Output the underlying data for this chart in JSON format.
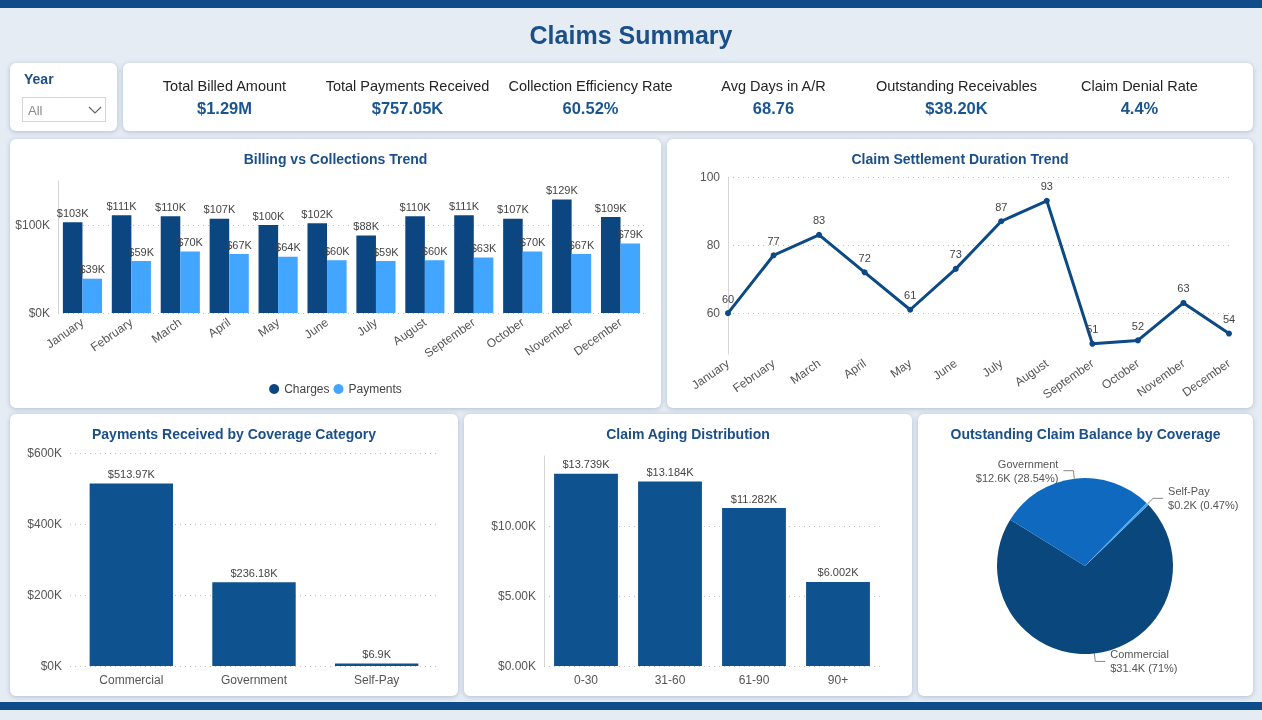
{
  "chart_data": [
    {
      "type": "other",
      "title": "Claims Summary"
    },
    {
      "type": "other",
      "title": "Year",
      "annotations": [
        "All"
      ]
    },
    {
      "type": "other",
      "annotations": [
        "Total Billed Amount",
        "$1.29M",
        "Total Payments Received",
        "$757.05K",
        "Collection Efficiency Rate",
        "60.52%",
        "Avg Days in A/R",
        "68.76",
        "Outstanding Receivables",
        "$38.20K",
        "Claim Denial Rate",
        "4.4%"
      ]
    },
    {
      "type": "bar",
      "title": "Billing vs Collections Trend",
      "categories": [
        "January",
        "February",
        "March",
        "April",
        "May",
        "June",
        "July",
        "August",
        "September",
        "October",
        "November",
        "December"
      ],
      "series": [
        {
          "name": "Charges",
          "color": "#0b4680",
          "values": [
            103000,
            111000,
            110000,
            107000,
            100000,
            102000,
            88000,
            110000,
            111000,
            107000,
            129000,
            109000
          ],
          "value_labels": [
            "$103K",
            "$111K",
            "$110K",
            "$107K",
            "$100K",
            "$102K",
            "$88K",
            "$110K",
            "$111K",
            "$107K",
            "$129K",
            "$109K"
          ]
        },
        {
          "name": "Payments",
          "color": "#42a5ff",
          "values": [
            39000,
            59000,
            70000,
            67000,
            64000,
            60000,
            59000,
            60000,
            63000,
            70000,
            67000,
            79000
          ],
          "value_labels": [
            "$39K",
            "$59K",
            "$70K",
            "$67K",
            "$64K",
            "$60K",
            "$59K",
            "$60K",
            "$63K",
            "$70K",
            "$67K",
            "$79K"
          ]
        }
      ],
      "ylim": [
        0,
        150000
      ],
      "yticks": [
        {
          "value": 0,
          "label": "$0K"
        },
        {
          "value": 100000,
          "label": "$100K"
        }
      ],
      "grid": "y",
      "legend": "bottom"
    },
    {
      "type": "line",
      "title": "Claim Settlement Duration Trend",
      "categories": [
        "January",
        "February",
        "March",
        "April",
        "May",
        "June",
        "July",
        "August",
        "September",
        "October",
        "November",
        "December"
      ],
      "values": [
        60,
        77,
        83,
        72,
        61,
        73,
        87,
        93,
        51,
        52,
        63,
        54
      ],
      "color": "#0c4a85",
      "ylim": [
        48,
        100
      ],
      "yticks": [
        60,
        80,
        100
      ],
      "grid": "y",
      "data_labels": true,
      "marker": "circle",
      "line_style": "solid"
    },
    {
      "type": "bar",
      "title": "Payments Received by Coverage Category",
      "categories": [
        "Commercial",
        "Government",
        "Self-Pay"
      ],
      "values": [
        513970,
        236180,
        6900
      ],
      "value_labels": [
        "$513.97K",
        "$236.18K",
        "$6.9K"
      ],
      "color": "#0f5290",
      "ylim": [
        0,
        600000
      ],
      "yticks": [
        {
          "value": 0,
          "label": "$0K"
        },
        {
          "value": 200000,
          "label": "$200K"
        },
        {
          "value": 400000,
          "label": "$400K"
        },
        {
          "value": 600000,
          "label": "$600K"
        }
      ],
      "grid": "y"
    },
    {
      "type": "bar",
      "title": "Claim Aging Distribution",
      "categories": [
        "0-30",
        "31-60",
        "61-90",
        "90+"
      ],
      "values": [
        13739,
        13184,
        11282,
        6002
      ],
      "value_labels": [
        "$13.739K",
        "$13.184K",
        "$11.282K",
        "$6.002K"
      ],
      "color": "#0f5290",
      "ylim": [
        0,
        15000
      ],
      "yticks": [
        {
          "value": 0,
          "label": "$0.00K"
        },
        {
          "value": 5000,
          "label": "$5.00K"
        },
        {
          "value": 10000,
          "label": "$10.00K"
        }
      ],
      "grid": "y"
    },
    {
      "type": "pie",
      "title": "Outstanding Claim Balance by Coverage",
      "categories": [
        "Commercial",
        "Government",
        "Self-Pay"
      ],
      "values": [
        31400,
        12600,
        200
      ],
      "value_labels": [
        "$31.4K (71%)",
        "$12.6K (28.54%)",
        "$0.2K (0.47%)"
      ],
      "colors": [
        "#0a477c",
        "#0f6abf",
        "#4aa3f0"
      ]
    }
  ]
}
